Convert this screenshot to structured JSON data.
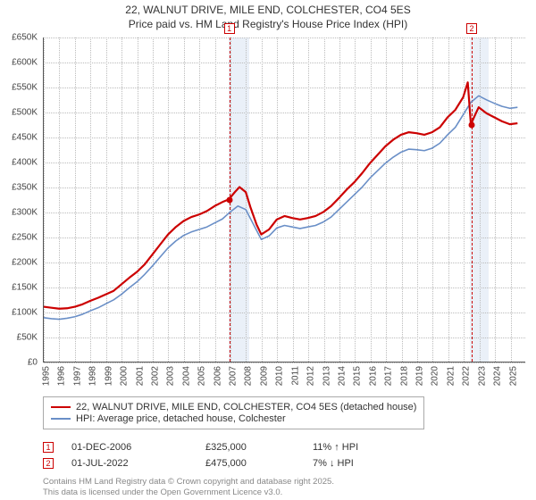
{
  "title_line1": "22, WALNUT DRIVE, MILE END, COLCHESTER, CO4 5ES",
  "title_line2": "Price paid vs. HM Land Registry's House Price Index (HPI)",
  "chart": {
    "type": "line",
    "x_years": [
      1995,
      1996,
      1997,
      1998,
      1999,
      2000,
      2001,
      2002,
      2003,
      2004,
      2005,
      2006,
      2007,
      2008,
      2009,
      2010,
      2011,
      2012,
      2013,
      2014,
      2015,
      2016,
      2017,
      2018,
      2019,
      2020,
      2021,
      2022,
      2023,
      2024,
      2025
    ],
    "x_min": 1995,
    "x_max": 2026,
    "y_min": 0,
    "y_max": 650000,
    "y_ticks": [
      0,
      50000,
      100000,
      150000,
      200000,
      250000,
      300000,
      350000,
      400000,
      450000,
      500000,
      550000,
      600000,
      650000
    ],
    "y_tick_labels": [
      "£0",
      "£50K",
      "£100K",
      "£150K",
      "£200K",
      "£250K",
      "£300K",
      "£350K",
      "£400K",
      "£450K",
      "£500K",
      "£550K",
      "£600K",
      "£650K"
    ],
    "grid_color": "#bbbbbb",
    "background_color": "#ffffff",
    "band_color": "#eaf0f8",
    "band_ranges": [
      [
        2006.9,
        2008.2
      ],
      [
        2022.4,
        2023.6
      ]
    ],
    "series": [
      {
        "name": "property",
        "label": "22, WALNUT DRIVE, MILE END, COLCHESTER, CO4 5ES (detached house)",
        "color": "#cc0000",
        "width": 2.2,
        "points": [
          [
            1995.0,
            110000
          ],
          [
            1995.5,
            108000
          ],
          [
            1996.0,
            106000
          ],
          [
            1996.5,
            107000
          ],
          [
            1997.0,
            110000
          ],
          [
            1997.5,
            115000
          ],
          [
            1998.0,
            122000
          ],
          [
            1998.5,
            128000
          ],
          [
            1999.0,
            135000
          ],
          [
            1999.5,
            142000
          ],
          [
            2000.0,
            155000
          ],
          [
            2000.5,
            168000
          ],
          [
            2001.0,
            180000
          ],
          [
            2001.5,
            195000
          ],
          [
            2002.0,
            215000
          ],
          [
            2002.5,
            235000
          ],
          [
            2003.0,
            255000
          ],
          [
            2003.5,
            270000
          ],
          [
            2004.0,
            282000
          ],
          [
            2004.5,
            290000
          ],
          [
            2005.0,
            295000
          ],
          [
            2005.5,
            302000
          ],
          [
            2006.0,
            312000
          ],
          [
            2006.5,
            320000
          ],
          [
            2006.9,
            325000
          ],
          [
            2007.3,
            340000
          ],
          [
            2007.6,
            350000
          ],
          [
            2008.0,
            340000
          ],
          [
            2008.3,
            310000
          ],
          [
            2008.7,
            275000
          ],
          [
            2009.0,
            255000
          ],
          [
            2009.5,
            265000
          ],
          [
            2010.0,
            285000
          ],
          [
            2010.5,
            292000
          ],
          [
            2011.0,
            288000
          ],
          [
            2011.5,
            285000
          ],
          [
            2012.0,
            288000
          ],
          [
            2012.5,
            292000
          ],
          [
            2013.0,
            300000
          ],
          [
            2013.5,
            312000
          ],
          [
            2014.0,
            328000
          ],
          [
            2014.5,
            345000
          ],
          [
            2015.0,
            360000
          ],
          [
            2015.5,
            378000
          ],
          [
            2016.0,
            398000
          ],
          [
            2016.5,
            415000
          ],
          [
            2017.0,
            432000
          ],
          [
            2017.5,
            445000
          ],
          [
            2018.0,
            455000
          ],
          [
            2018.5,
            460000
          ],
          [
            2019.0,
            458000
          ],
          [
            2019.5,
            455000
          ],
          [
            2020.0,
            460000
          ],
          [
            2020.5,
            470000
          ],
          [
            2021.0,
            490000
          ],
          [
            2021.5,
            505000
          ],
          [
            2022.0,
            530000
          ],
          [
            2022.3,
            560000
          ],
          [
            2022.5,
            475000
          ],
          [
            2022.7,
            490000
          ],
          [
            2023.0,
            510000
          ],
          [
            2023.5,
            498000
          ],
          [
            2024.0,
            490000
          ],
          [
            2024.5,
            482000
          ],
          [
            2025.0,
            476000
          ],
          [
            2025.5,
            478000
          ]
        ]
      },
      {
        "name": "hpi",
        "label": "HPI: Average price, detached house, Colchester",
        "color": "#6a8fc7",
        "width": 1.6,
        "points": [
          [
            1995.0,
            88000
          ],
          [
            1995.5,
            86000
          ],
          [
            1996.0,
            85000
          ],
          [
            1996.5,
            87000
          ],
          [
            1997.0,
            90000
          ],
          [
            1997.5,
            95000
          ],
          [
            1998.0,
            102000
          ],
          [
            1998.5,
            108000
          ],
          [
            1999.0,
            116000
          ],
          [
            1999.5,
            124000
          ],
          [
            2000.0,
            135000
          ],
          [
            2000.5,
            148000
          ],
          [
            2001.0,
            160000
          ],
          [
            2001.5,
            175000
          ],
          [
            2002.0,
            192000
          ],
          [
            2002.5,
            210000
          ],
          [
            2003.0,
            228000
          ],
          [
            2003.5,
            242000
          ],
          [
            2004.0,
            253000
          ],
          [
            2004.5,
            260000
          ],
          [
            2005.0,
            265000
          ],
          [
            2005.5,
            270000
          ],
          [
            2006.0,
            278000
          ],
          [
            2006.5,
            286000
          ],
          [
            2007.0,
            300000
          ],
          [
            2007.5,
            312000
          ],
          [
            2008.0,
            305000
          ],
          [
            2008.5,
            275000
          ],
          [
            2009.0,
            245000
          ],
          [
            2009.5,
            252000
          ],
          [
            2010.0,
            268000
          ],
          [
            2010.5,
            273000
          ],
          [
            2011.0,
            270000
          ],
          [
            2011.5,
            267000
          ],
          [
            2012.0,
            270000
          ],
          [
            2012.5,
            273000
          ],
          [
            2013.0,
            280000
          ],
          [
            2013.5,
            290000
          ],
          [
            2014.0,
            305000
          ],
          [
            2014.5,
            320000
          ],
          [
            2015.0,
            335000
          ],
          [
            2015.5,
            350000
          ],
          [
            2016.0,
            368000
          ],
          [
            2016.5,
            383000
          ],
          [
            2017.0,
            398000
          ],
          [
            2017.5,
            410000
          ],
          [
            2018.0,
            420000
          ],
          [
            2018.5,
            426000
          ],
          [
            2019.0,
            425000
          ],
          [
            2019.5,
            423000
          ],
          [
            2020.0,
            428000
          ],
          [
            2020.5,
            438000
          ],
          [
            2021.0,
            455000
          ],
          [
            2021.5,
            470000
          ],
          [
            2022.0,
            495000
          ],
          [
            2022.5,
            520000
          ],
          [
            2023.0,
            533000
          ],
          [
            2023.5,
            525000
          ],
          [
            2024.0,
            518000
          ],
          [
            2024.5,
            512000
          ],
          [
            2025.0,
            508000
          ],
          [
            2025.5,
            510000
          ]
        ]
      }
    ],
    "sale_markers": [
      {
        "n": "1",
        "year": 2006.92,
        "value": 325000,
        "color": "#cc0000"
      },
      {
        "n": "2",
        "year": 2022.5,
        "value": 475000,
        "color": "#cc0000"
      }
    ]
  },
  "legend_title": "",
  "sales": [
    {
      "n": "1",
      "date": "01-DEC-2006",
      "price": "£325,000",
      "pct": "11% ↑ HPI",
      "color": "#cc0000"
    },
    {
      "n": "2",
      "date": "01-JUL-2022",
      "price": "£475,000",
      "pct": "7% ↓ HPI",
      "color": "#cc0000"
    }
  ],
  "footer_line1": "Contains HM Land Registry data © Crown copyright and database right 2025.",
  "footer_line2": "This data is licensed under the Open Government Licence v3.0."
}
